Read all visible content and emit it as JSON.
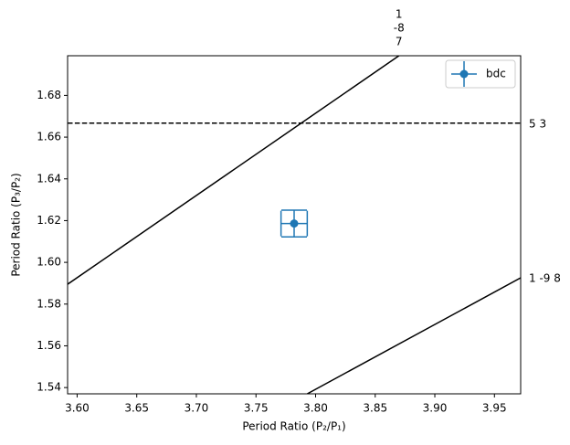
{
  "chart_data": {
    "type": "scatter",
    "xlabel": "Period Ratio (P₂/P₁)",
    "ylabel": "Period Ratio (P₃/P₂)",
    "xlim": [
      3.592,
      3.972
    ],
    "ylim": [
      1.537,
      1.699
    ],
    "xticks": [
      {
        "value": 3.6,
        "label": "3.60"
      },
      {
        "value": 3.65,
        "label": "3.65"
      },
      {
        "value": 3.7,
        "label": "3.70"
      },
      {
        "value": 3.75,
        "label": "3.75"
      },
      {
        "value": 3.8,
        "label": "3.80"
      },
      {
        "value": 3.85,
        "label": "3.85"
      },
      {
        "value": 3.9,
        "label": "3.90"
      },
      {
        "value": 3.95,
        "label": "3.95"
      }
    ],
    "yticks": [
      {
        "value": 1.54,
        "label": "1.54"
      },
      {
        "value": 1.56,
        "label": "1.56"
      },
      {
        "value": 1.58,
        "label": "1.58"
      },
      {
        "value": 1.6,
        "label": "1.60"
      },
      {
        "value": 1.62,
        "label": "1.62"
      },
      {
        "value": 1.64,
        "label": "1.64"
      },
      {
        "value": 1.66,
        "label": "1.66"
      },
      {
        "value": 1.68,
        "label": "1.68"
      }
    ],
    "series": [
      {
        "name": "bdc",
        "color": "#1f77b4",
        "x": [
          3.782
        ],
        "y": [
          1.6186
        ],
        "xerr": [
          0.011
        ],
        "yerr": [
          0.0064
        ]
      }
    ],
    "lines": [
      {
        "x": [
          3.592,
          3.8699
        ],
        "y": [
          1.5895,
          1.699
        ],
        "style": "solid",
        "label": [
          "1",
          "-8",
          "7"
        ],
        "label_side": "top"
      },
      {
        "x": [
          3.592,
          3.972
        ],
        "y": [
          1.6667,
          1.6667
        ],
        "style": "dashed",
        "label": [
          "5 3"
        ],
        "label_side": "right"
      },
      {
        "x": [
          3.793,
          3.972
        ],
        "y": [
          1.537,
          1.5926
        ],
        "style": "solid",
        "label": [
          "1 -9 8"
        ],
        "label_side": "right"
      }
    ],
    "legend": "upper right",
    "grid": false
  }
}
